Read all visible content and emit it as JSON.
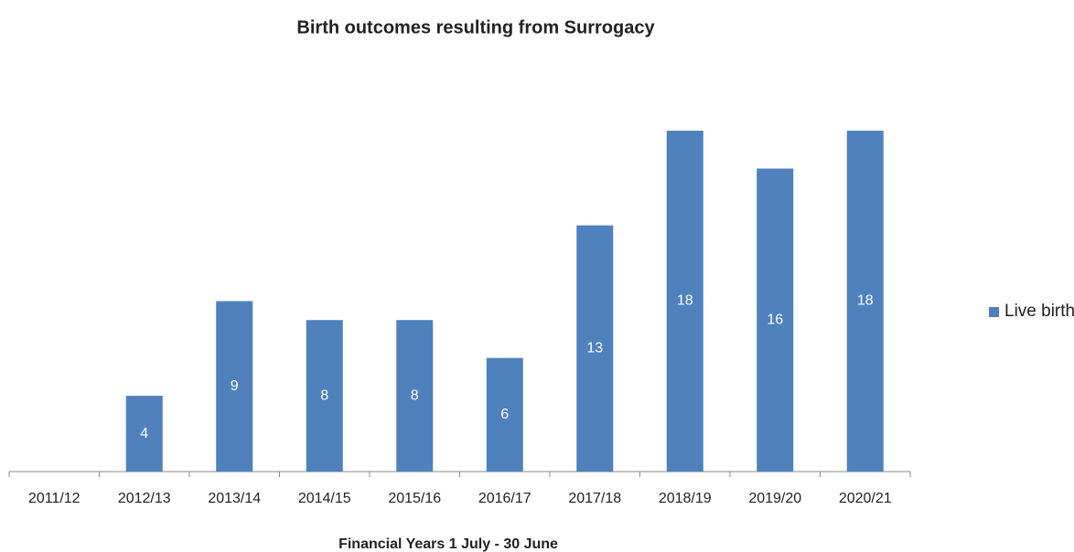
{
  "chart_data": {
    "type": "bar",
    "title": "Birth outcomes resulting from Surrogacy",
    "x_label": "Financial Years 1 July - 30 June",
    "categories": [
      "2011/12",
      "2012/13",
      "2013/14",
      "2014/15",
      "2015/16",
      "2016/17",
      "2017/18",
      "2018/19",
      "2019/20",
      "2020/21"
    ],
    "series": [
      {
        "name": "Live birth",
        "color": "#4f81bd",
        "values": [
          null,
          4,
          9,
          8,
          8,
          6,
          13,
          18,
          16,
          18
        ]
      }
    ],
    "ylim": [
      0,
      18
    ],
    "legend": "right"
  }
}
